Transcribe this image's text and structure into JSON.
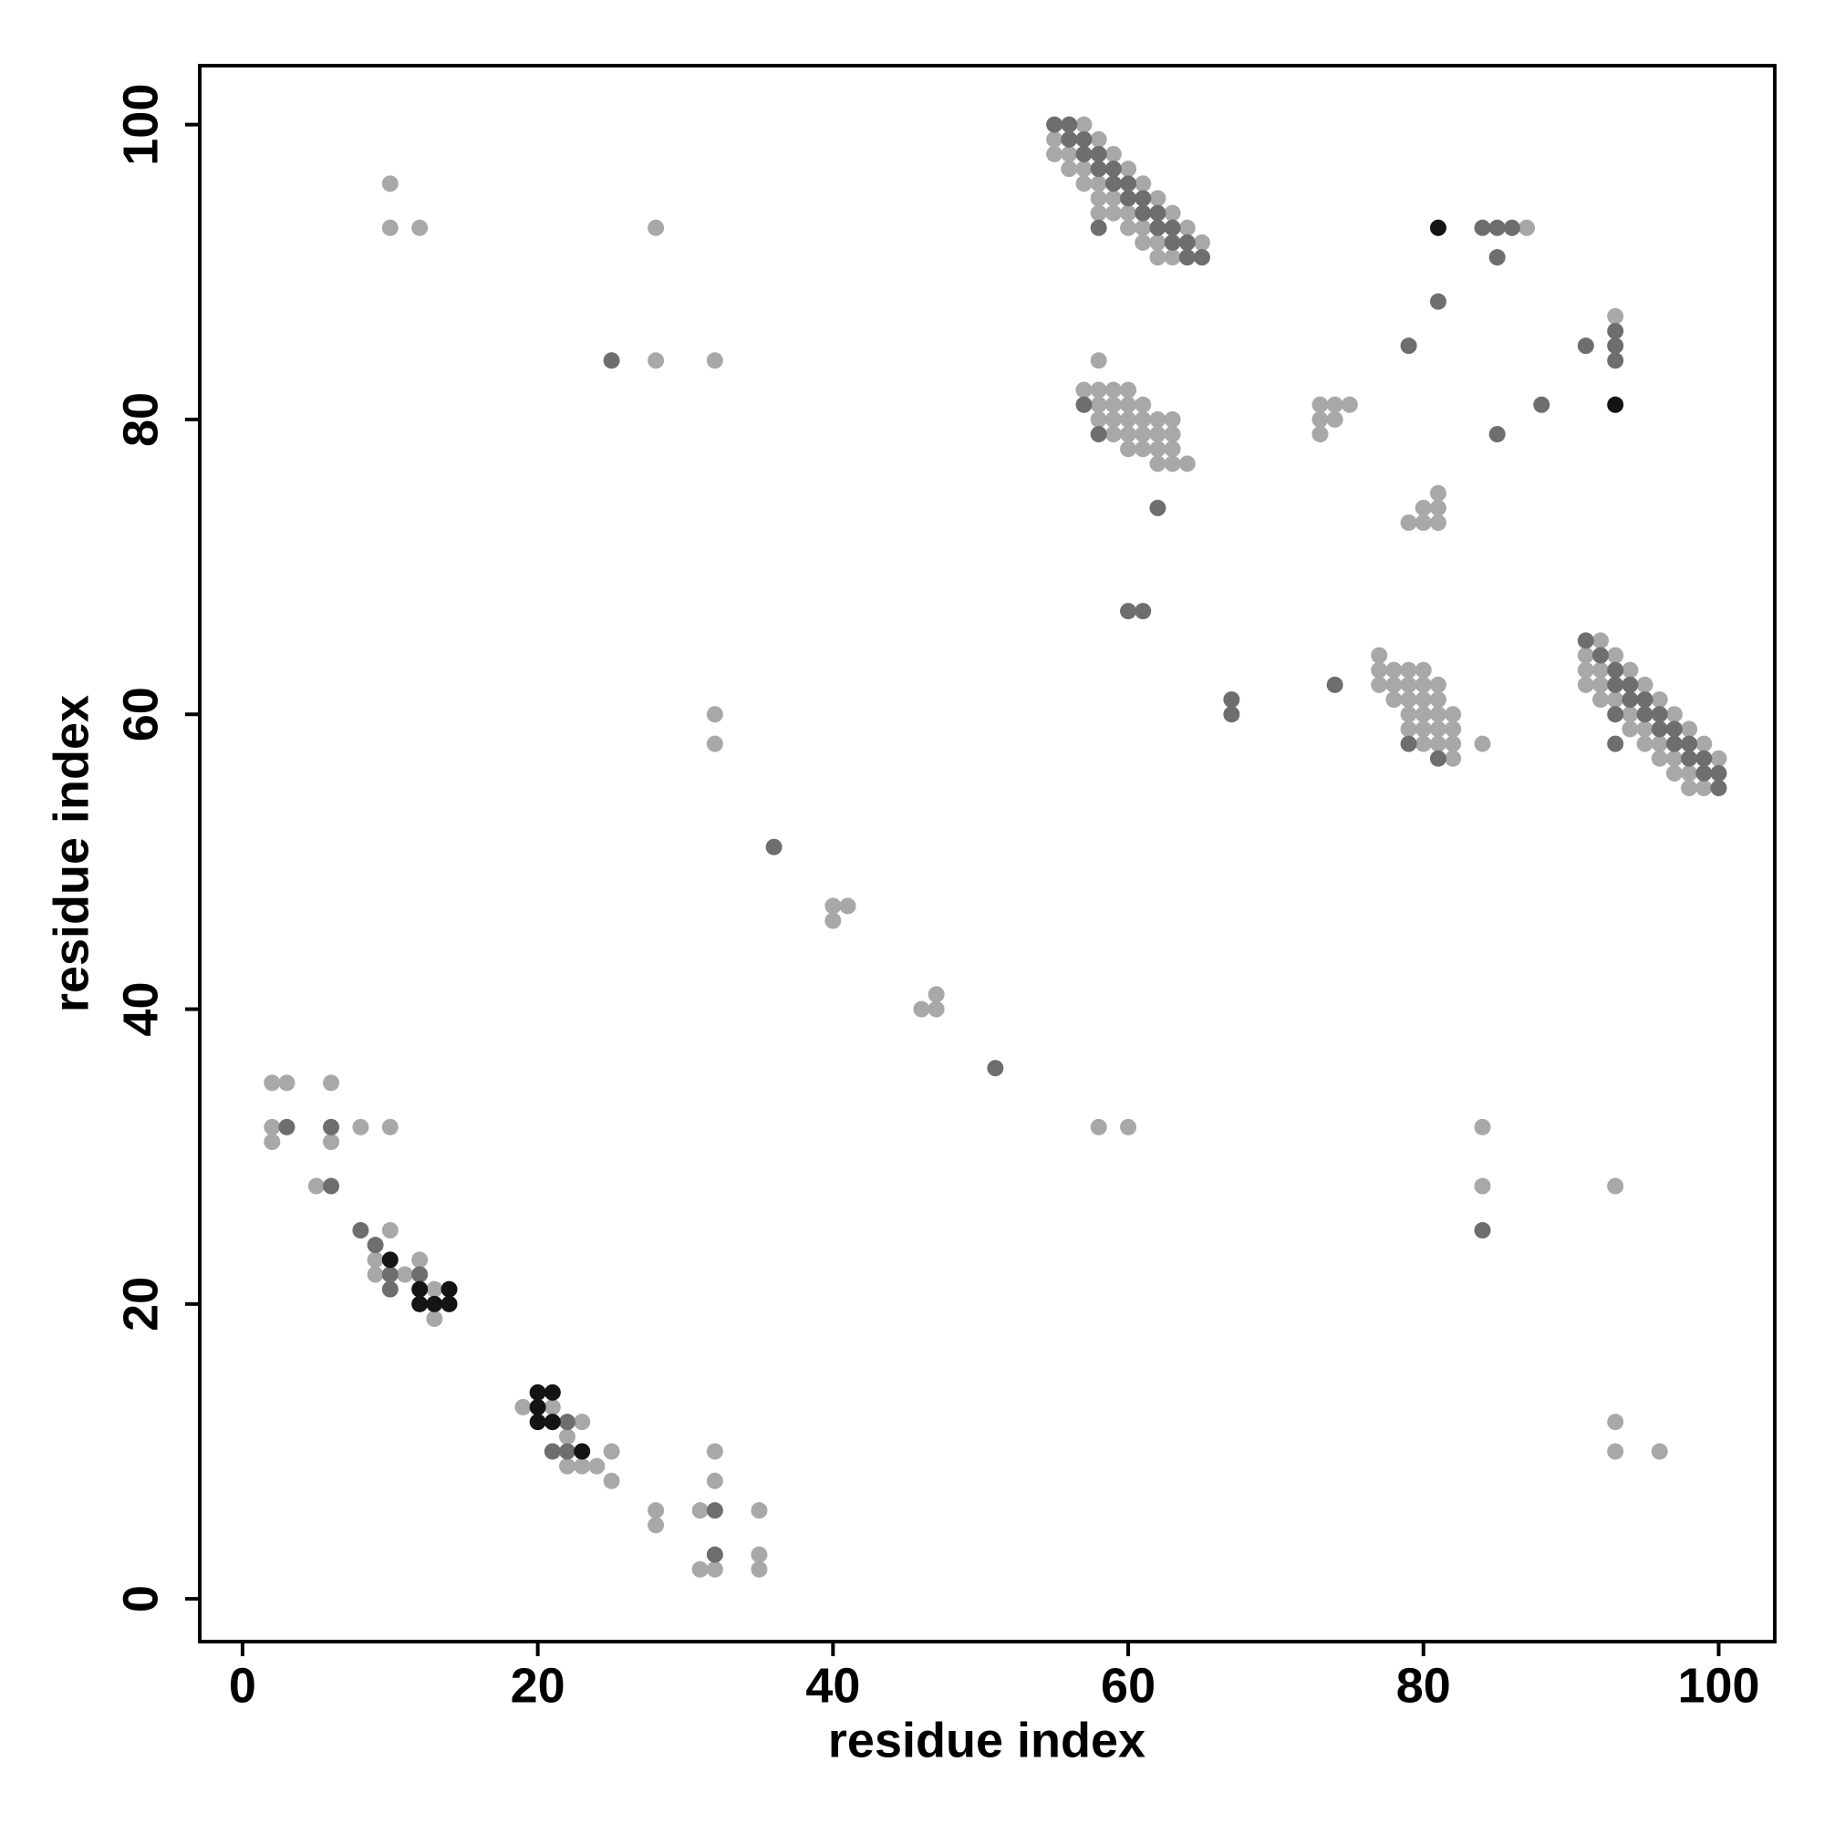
{
  "chart_data": {
    "type": "scatter",
    "x_label": "residue index",
    "y_label": "residue index",
    "xlim": [
      -2.9,
      103.8
    ],
    "ylim": [
      -2.9,
      104
    ],
    "xticks": [
      0,
      20,
      40,
      60,
      80,
      100
    ],
    "yticks": [
      0,
      20,
      40,
      60,
      80,
      100
    ],
    "grid": false,
    "series": [
      {
        "color": "#a8a8a8",
        "x": [
          2,
          3,
          6,
          2,
          8,
          10,
          2,
          6,
          5,
          10,
          9,
          12,
          9,
          11,
          13,
          13,
          19,
          21,
          23,
          22,
          25,
          22,
          23,
          24,
          25,
          28,
          31,
          35,
          28,
          32,
          32,
          35,
          31,
          32,
          35,
          40,
          41,
          40,
          46,
          47,
          47,
          10,
          10,
          12,
          28,
          28,
          32,
          32,
          32,
          58,
          60,
          84,
          84,
          93,
          93,
          93,
          96,
          57,
          55,
          58,
          55,
          56,
          59,
          56,
          57,
          60,
          57,
          58,
          61,
          58,
          59,
          62,
          58,
          59,
          60,
          63,
          60,
          61,
          64,
          61,
          62,
          65,
          62,
          63,
          58,
          57,
          58,
          59,
          60,
          58,
          59,
          60,
          61,
          58,
          59,
          60,
          61,
          62,
          63,
          59,
          60,
          61,
          62,
          63,
          60,
          61,
          62,
          63,
          62,
          63,
          64,
          73,
          74,
          75,
          73,
          74,
          73,
          79,
          80,
          81,
          80,
          81,
          81,
          84,
          87,
          93,
          77,
          77,
          78,
          79,
          80,
          77,
          78,
          79,
          80,
          81,
          78,
          79,
          80,
          81,
          79,
          80,
          81,
          82,
          79,
          80,
          81,
          82,
          80,
          81,
          82,
          82,
          92,
          91,
          93,
          91,
          92,
          94,
          91,
          92,
          95,
          92,
          93,
          96,
          94,
          97,
          94,
          95,
          98,
          95,
          96,
          99,
          96,
          97,
          100,
          97,
          98,
          98,
          99
        ],
        "y": [
          35,
          35,
          35,
          32,
          32,
          32,
          31,
          31,
          28,
          25,
          23,
          23,
          22,
          22,
          21,
          19,
          13,
          13,
          12,
          11,
          10,
          9,
          9,
          9,
          8,
          6,
          6,
          6,
          5,
          8,
          10,
          3,
          2,
          2,
          2,
          47,
          47,
          46,
          40,
          41,
          40,
          96,
          93,
          93,
          93,
          84,
          84,
          60,
          58,
          32,
          32,
          32,
          28,
          28,
          12,
          10,
          10,
          100,
          99,
          99,
          98,
          98,
          98,
          97,
          97,
          97,
          96,
          96,
          96,
          95,
          95,
          95,
          94,
          94,
          94,
          94,
          93,
          93,
          93,
          92,
          92,
          92,
          91,
          91,
          84,
          82,
          82,
          82,
          82,
          81,
          81,
          81,
          81,
          80,
          80,
          80,
          80,
          80,
          80,
          79,
          79,
          79,
          79,
          79,
          78,
          78,
          78,
          78,
          77,
          77,
          77,
          81,
          81,
          81,
          80,
          80,
          79,
          73,
          73,
          73,
          74,
          74,
          75,
          58,
          93,
          87,
          64,
          63,
          63,
          63,
          63,
          62,
          62,
          62,
          62,
          62,
          61,
          61,
          61,
          61,
          60,
          60,
          60,
          60,
          59,
          59,
          59,
          59,
          58,
          58,
          58,
          57,
          65,
          64,
          64,
          63,
          63,
          63,
          62,
          62,
          62,
          61,
          61,
          61,
          60,
          60,
          59,
          59,
          59,
          58,
          58,
          58,
          57,
          57,
          57,
          56,
          56,
          55,
          55
        ]
      },
      {
        "color": "#6e6e6e",
        "x": [
          3,
          6,
          6,
          8,
          9,
          10,
          12,
          10,
          22,
          21,
          22,
          32,
          32,
          36,
          51,
          25,
          84,
          55,
          56,
          56,
          57,
          57,
          58,
          58,
          59,
          59,
          60,
          60,
          61,
          61,
          62,
          58,
          62,
          63,
          63,
          64,
          64,
          65,
          57,
          58,
          62,
          60,
          61,
          67,
          67,
          74,
          79,
          81,
          84,
          85,
          86,
          85,
          81,
          79,
          91,
          93,
          93,
          93,
          88,
          85,
          91,
          92,
          93,
          93,
          94,
          94,
          95,
          93,
          95,
          96,
          96,
          97,
          93,
          97,
          98,
          98,
          99,
          99,
          100,
          100
        ],
        "y": [
          32,
          32,
          28,
          25,
          24,
          22,
          22,
          21,
          12,
          10,
          10,
          6,
          3,
          51,
          36,
          84,
          25,
          100,
          100,
          99,
          99,
          98,
          98,
          97,
          97,
          96,
          96,
          95,
          95,
          94,
          94,
          93,
          93,
          93,
          92,
          92,
          91,
          91,
          81,
          79,
          74,
          67,
          67,
          61,
          60,
          62,
          58,
          57,
          93,
          93,
          93,
          91,
          88,
          85,
          85,
          86,
          85,
          84,
          81,
          79,
          65,
          64,
          63,
          62,
          62,
          61,
          61,
          60,
          60,
          60,
          59,
          59,
          58,
          58,
          58,
          57,
          57,
          56,
          56,
          55
        ]
      },
      {
        "color": "#141414",
        "x": [
          10,
          12,
          14,
          12,
          13,
          14,
          20,
          21,
          20,
          20,
          21,
          23,
          81,
          93
        ],
        "y": [
          23,
          21,
          21,
          20,
          20,
          20,
          14,
          14,
          13,
          12,
          12,
          10,
          93,
          81
        ]
      }
    ]
  }
}
